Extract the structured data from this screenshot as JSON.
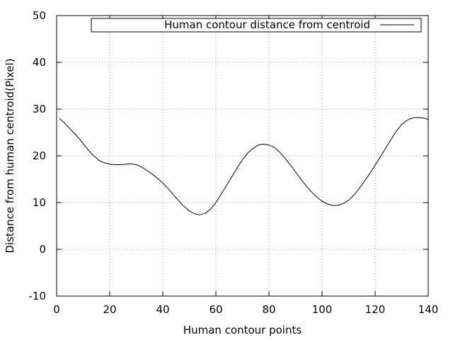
{
  "chart_data": {
    "type": "line",
    "title": "",
    "xlabel": "Human contour points",
    "ylabel": "Distance from human centroid(Pixel)",
    "xlim": [
      0,
      140
    ],
    "ylim": [
      -10,
      50
    ],
    "xticks": [
      0,
      20,
      40,
      60,
      80,
      100,
      120,
      140
    ],
    "yticks": [
      -10,
      0,
      10,
      20,
      30,
      40,
      50
    ],
    "x_tick_labels": [
      "0",
      "20",
      "40",
      "60",
      "80",
      "100",
      "120",
      "140"
    ],
    "y_tick_labels": [
      "-10",
      "0",
      "10",
      "20",
      "30",
      "40",
      "50"
    ],
    "grid": true,
    "legend_position": "top-right",
    "series": [
      {
        "name": "Human contour distance from centroid",
        "color": "#000000",
        "x": [
          1,
          3,
          5,
          8,
          10,
          12,
          14,
          16,
          18,
          20,
          22,
          24,
          26,
          28,
          30,
          32,
          35,
          38,
          40,
          42,
          45,
          48,
          50,
          52,
          54,
          56,
          58,
          60,
          62,
          65,
          68,
          70,
          72,
          74,
          76,
          78,
          80,
          82,
          84,
          86,
          88,
          90,
          92,
          94,
          96,
          98,
          100,
          102,
          104,
          106,
          108,
          110,
          112,
          114,
          116,
          118,
          120,
          122,
          125,
          128,
          130,
          132,
          134,
          136,
          138,
          140
        ],
        "values": [
          28,
          27,
          25.8,
          24,
          22.6,
          21.2,
          20,
          19,
          18.5,
          18.2,
          18.1,
          18.1,
          18.2,
          18.3,
          18.1,
          17.6,
          16.5,
          15.2,
          14.2,
          13,
          11,
          9.2,
          8.2,
          7.6,
          7.4,
          7.7,
          8.6,
          10,
          11.8,
          14.6,
          17.4,
          19.2,
          20.6,
          21.6,
          22.3,
          22.5,
          22.3,
          21.8,
          20.8,
          19.5,
          18.1,
          16.6,
          15,
          13.6,
          12.3,
          11.2,
          10.3,
          9.7,
          9.4,
          9.4,
          9.8,
          10.5,
          11.6,
          13,
          14.6,
          16.2,
          18,
          19.8,
          22.6,
          25.3,
          26.7,
          27.6,
          28.1,
          28.2,
          28.1,
          27.8
        ]
      }
    ]
  }
}
